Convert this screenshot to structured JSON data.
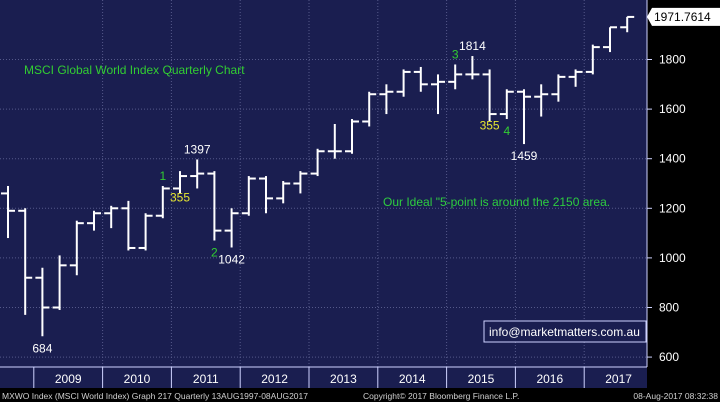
{
  "chart_data": {
    "type": "bar",
    "style": "ohlc",
    "title": "MSCI Global World Index Quarterly Chart",
    "ylim": [
      560,
      2040
    ],
    "x_ticks": [
      "2009",
      "2010",
      "2011",
      "2012",
      "2013",
      "2014",
      "2015",
      "2016",
      "2017"
    ],
    "y_ticks": [
      "600",
      "800",
      "1000",
      "1200",
      "1400",
      "1600",
      "1800"
    ],
    "y_tick_values": [
      600,
      800,
      1000,
      1200,
      1400,
      1600,
      1800
    ],
    "last_price_label": "1971.7614",
    "last_price": 1971.76,
    "grid": true,
    "bars": [
      {
        "q": "2008Q3",
        "o": 1260,
        "h": 1290,
        "l": 1080,
        "c": 1190
      },
      {
        "q": "2008Q4",
        "o": 1190,
        "h": 1200,
        "l": 770,
        "c": 920
      },
      {
        "q": "2009Q1",
        "o": 920,
        "h": 960,
        "l": 684,
        "c": 800
      },
      {
        "q": "2009Q2",
        "o": 800,
        "h": 1010,
        "l": 790,
        "c": 970
      },
      {
        "q": "2009Q3",
        "o": 970,
        "h": 1150,
        "l": 930,
        "c": 1140
      },
      {
        "q": "2009Q4",
        "o": 1140,
        "h": 1190,
        "l": 1110,
        "c": 1180
      },
      {
        "q": "2010Q1",
        "o": 1180,
        "h": 1210,
        "l": 1120,
        "c": 1200
      },
      {
        "q": "2010Q2",
        "o": 1200,
        "h": 1230,
        "l": 1030,
        "c": 1040
      },
      {
        "q": "2010Q3",
        "o": 1040,
        "h": 1180,
        "l": 1030,
        "c": 1170
      },
      {
        "q": "2010Q4",
        "o": 1170,
        "h": 1290,
        "l": 1160,
        "c": 1280
      },
      {
        "q": "2011Q1",
        "o": 1280,
        "h": 1350,
        "l": 1260,
        "c": 1330
      },
      {
        "q": "2011Q2",
        "o": 1330,
        "h": 1397,
        "l": 1280,
        "c": 1340
      },
      {
        "q": "2011Q3",
        "o": 1340,
        "h": 1350,
        "l": 1070,
        "c": 1110
      },
      {
        "q": "2011Q4",
        "o": 1110,
        "h": 1200,
        "l": 1042,
        "c": 1180
      },
      {
        "q": "2012Q1",
        "o": 1180,
        "h": 1330,
        "l": 1170,
        "c": 1320
      },
      {
        "q": "2012Q2",
        "o": 1320,
        "h": 1330,
        "l": 1180,
        "c": 1240
      },
      {
        "q": "2012Q3",
        "o": 1240,
        "h": 1310,
        "l": 1220,
        "c": 1300
      },
      {
        "q": "2012Q4",
        "o": 1300,
        "h": 1350,
        "l": 1260,
        "c": 1340
      },
      {
        "q": "2013Q1",
        "o": 1340,
        "h": 1440,
        "l": 1330,
        "c": 1430
      },
      {
        "q": "2013Q2",
        "o": 1430,
        "h": 1540,
        "l": 1400,
        "c": 1430
      },
      {
        "q": "2013Q3",
        "o": 1430,
        "h": 1560,
        "l": 1420,
        "c": 1550
      },
      {
        "q": "2013Q4",
        "o": 1550,
        "h": 1670,
        "l": 1530,
        "c": 1660
      },
      {
        "q": "2014Q1",
        "o": 1660,
        "h": 1700,
        "l": 1580,
        "c": 1670
      },
      {
        "q": "2014Q2",
        "o": 1670,
        "h": 1760,
        "l": 1650,
        "c": 1750
      },
      {
        "q": "2014Q3",
        "o": 1750,
        "h": 1770,
        "l": 1670,
        "c": 1700
      },
      {
        "q": "2014Q4",
        "o": 1700,
        "h": 1740,
        "l": 1580,
        "c": 1710
      },
      {
        "q": "2015Q1",
        "o": 1710,
        "h": 1780,
        "l": 1680,
        "c": 1740
      },
      {
        "q": "2015Q2",
        "o": 1740,
        "h": 1814,
        "l": 1720,
        "c": 1740
      },
      {
        "q": "2015Q3",
        "o": 1740,
        "h": 1760,
        "l": 1550,
        "c": 1580
      },
      {
        "q": "2015Q4",
        "o": 1580,
        "h": 1680,
        "l": 1560,
        "c": 1670
      },
      {
        "q": "2016Q1",
        "o": 1670,
        "h": 1680,
        "l": 1459,
        "c": 1650
      },
      {
        "q": "2016Q2",
        "o": 1650,
        "h": 1700,
        "l": 1570,
        "c": 1660
      },
      {
        "q": "2016Q3",
        "o": 1660,
        "h": 1740,
        "l": 1630,
        "c": 1730
      },
      {
        "q": "2016Q4",
        "o": 1730,
        "h": 1760,
        "l": 1690,
        "c": 1750
      },
      {
        "q": "2017Q1",
        "o": 1750,
        "h": 1860,
        "l": 1740,
        "c": 1850
      },
      {
        "q": "2017Q2",
        "o": 1850,
        "h": 1930,
        "l": 1830,
        "c": 1930
      },
      {
        "q": "2017Q3",
        "o": 1930,
        "h": 1972,
        "l": 1910,
        "c": 1971.76
      }
    ],
    "annotations": [
      {
        "text": "684",
        "bar": 2,
        "at": "low",
        "color": "white"
      },
      {
        "text": "1397",
        "bar": 11,
        "at": "high",
        "color": "white"
      },
      {
        "text": "1",
        "bar": 9,
        "at": "high",
        "color": "green"
      },
      {
        "text": "355",
        "bar": 10,
        "at": "low-mid",
        "color": "yellow"
      },
      {
        "text": "2",
        "bar": 12,
        "at": "low",
        "color": "green"
      },
      {
        "text": "1042",
        "bar": 13,
        "at": "low",
        "color": "white"
      },
      {
        "text": "3",
        "bar": 26,
        "at": "high",
        "color": "green"
      },
      {
        "text": "1814",
        "bar": 27,
        "at": "high",
        "color": "white"
      },
      {
        "text": "355",
        "bar": 28,
        "at": "low-mid",
        "color": "yellow"
      },
      {
        "text": "4",
        "bar": 29,
        "at": "low",
        "color": "green"
      },
      {
        "text": "1459",
        "bar": 30,
        "at": "low",
        "color": "white"
      }
    ],
    "note": "Our Ideal \"5-point is around the 2150 area.",
    "website": "info@marketmatters.com.au"
  },
  "footer": {
    "left": "MXWO Index (MSCI World Index) Graph 217  Quarterly 13AUG1997-08AUG2017",
    "center": "Copyright© 2017 Bloomberg Finance L.P.",
    "right": "08-Aug-2017 08:32:38"
  },
  "colors": {
    "plot_bg": "#1a1e50",
    "grid": "#55598a",
    "bars": "#ffffff",
    "green": "#32cd32",
    "yellow": "#e6e632",
    "note": "#2ecc40"
  }
}
